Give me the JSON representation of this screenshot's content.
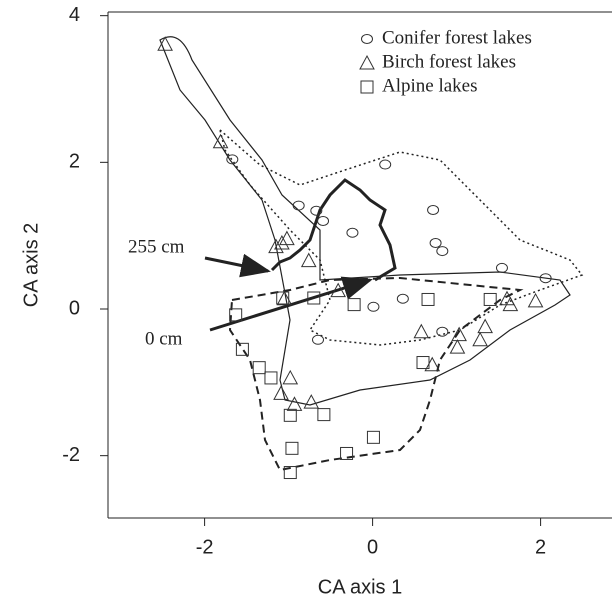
{
  "chart_data": {
    "type": "scatter",
    "xlabel": "CA axis 1",
    "ylabel": "CA axis 2",
    "xlim": [
      -3.15,
      2.85
    ],
    "ylim": [
      -2.85,
      4.05
    ],
    "xticks": [
      -2,
      0,
      2
    ],
    "yticks": [
      -2,
      0,
      2,
      4
    ],
    "annotations": [
      "255 cm",
      "0 cm"
    ],
    "series": [
      {
        "name": "Conifer forest lakes",
        "marker": "circle",
        "color": "#333",
        "x": [
          -1.67,
          0.15,
          -0.88,
          -0.67,
          -0.59,
          -0.24,
          0.72,
          0.75,
          0.83,
          1.54,
          2.06,
          -0.65,
          0.01,
          0.36,
          0.83
        ],
        "values": [
          2.04,
          1.97,
          1.41,
          1.34,
          1.2,
          1.04,
          1.35,
          0.9,
          0.79,
          0.56,
          0.42,
          -0.42,
          0.03,
          0.14,
          -0.31
        ]
      },
      {
        "name": "Birch forest lakes",
        "marker": "triangle",
        "color": "#333",
        "x": [
          -2.47,
          -1.81,
          -1.15,
          -1.02,
          -1.08,
          -1.05,
          -0.76,
          -0.41,
          0.58,
          0.71,
          1.01,
          1.03,
          1.28,
          1.34,
          1.6,
          1.64,
          1.94,
          -0.98,
          -1.09,
          -0.93,
          -0.73
        ],
        "values": [
          3.61,
          2.28,
          0.85,
          0.96,
          0.9,
          0.14,
          0.66,
          0.25,
          -0.31,
          -0.76,
          -0.52,
          -0.35,
          -0.42,
          -0.24,
          0.14,
          0.06,
          0.11,
          -0.94,
          -1.15,
          -1.3,
          -1.27
        ]
      },
      {
        "name": "Alpine lakes",
        "marker": "square",
        "color": "#333",
        "x": [
          -1.63,
          -1.55,
          -1.35,
          -1.21,
          -0.7,
          -0.22,
          0.66,
          0.6,
          1.4,
          -0.98,
          -0.58,
          -0.96,
          -0.98,
          -0.31,
          0.01,
          -1.07
        ],
        "values": [
          -0.08,
          -0.55,
          -0.8,
          -0.94,
          0.15,
          0.06,
          0.13,
          -0.73,
          0.13,
          -1.45,
          -1.44,
          -1.9,
          -2.23,
          -1.97,
          -1.75,
          0.15
        ]
      }
    ]
  }
}
